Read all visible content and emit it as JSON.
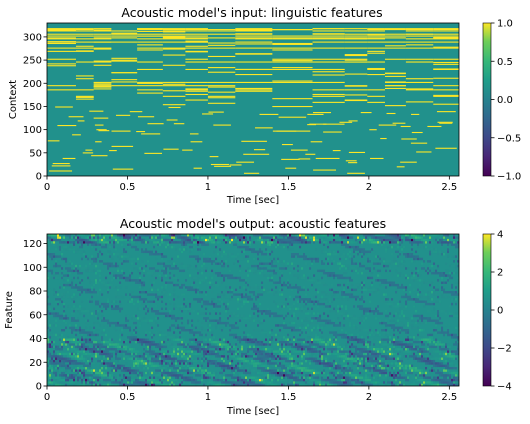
{
  "chart_data": [
    {
      "type": "heatmap",
      "title": "Acoustic model's input: linguistic features",
      "xlabel": "Time [sec]",
      "ylabel": "Context",
      "xlim": [
        0,
        2.56
      ],
      "ylim": [
        0,
        330
      ],
      "xticks": [
        "0",
        "0.5",
        "1",
        "1.5",
        "2",
        "2.5"
      ],
      "xtick_values": [
        0,
        0.5,
        1,
        1.5,
        2,
        2.5
      ],
      "yticks": [
        "0",
        "50",
        "100",
        "150",
        "200",
        "250",
        "300"
      ],
      "ytick_values": [
        0,
        50,
        100,
        150,
        200,
        250,
        300
      ],
      "colorbar": {
        "min": -1.0,
        "max": 1.0,
        "ticks": [
          "1.0",
          "0.5",
          "0.0",
          "−0.5",
          "−1.0"
        ],
        "tick_values": [
          1.0,
          0.5,
          0.0,
          -0.5,
          -1.0
        ]
      },
      "colormap": "viridis",
      "background_value": 0.0,
      "grid": false,
      "segment_boundaries_sec": [
        0,
        0.18,
        0.29,
        0.4,
        0.56,
        0.72,
        0.86,
        1.0,
        1.17,
        1.4,
        1.65,
        1.85,
        1.99,
        2.1,
        2.23,
        2.4,
        2.56
      ]
    },
    {
      "type": "heatmap",
      "title": "Acoustic model's output: acoustic features",
      "xlabel": "Time [sec]",
      "ylabel": "Feature",
      "xlim": [
        0,
        2.56
      ],
      "ylim": [
        0,
        128
      ],
      "xticks": [
        "0",
        "0.5",
        "1",
        "1.5",
        "2",
        "2.5"
      ],
      "xtick_values": [
        0,
        0.5,
        1,
        1.5,
        2,
        2.5
      ],
      "yticks": [
        "0",
        "20",
        "40",
        "60",
        "80",
        "100",
        "120"
      ],
      "ytick_values": [
        0,
        20,
        40,
        60,
        80,
        100,
        120
      ],
      "colorbar": {
        "min": -4,
        "max": 4,
        "ticks": [
          "4",
          "2",
          "0",
          "−2",
          "−4"
        ],
        "tick_values": [
          4,
          2,
          0,
          -2,
          -4
        ]
      },
      "colormap": "viridis",
      "background_value": 0,
      "grid": false
    }
  ]
}
